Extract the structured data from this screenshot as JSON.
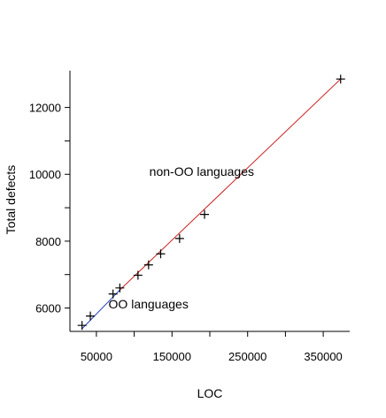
{
  "chart_data": {
    "type": "scatter",
    "title": "",
    "xlabel": "LOC",
    "ylabel": "Total defects",
    "xlim": [
      15000,
      385000
    ],
    "ylim": [
      5300,
      13100
    ],
    "x_ticks": [
      50000,
      150000,
      250000,
      350000
    ],
    "x_tick_labels": [
      "50000",
      "150000",
      "250000",
      "350000"
    ],
    "x_minor_ticks": [
      100000,
      200000,
      300000
    ],
    "y_ticks": [
      6000,
      8000,
      10000,
      12000
    ],
    "y_tick_labels": [
      "6000",
      "8000",
      "10000",
      "12000"
    ],
    "y_minor_ticks": [
      7000,
      9000,
      11000
    ],
    "grid": false,
    "points": [
      {
        "x": 31000,
        "y": 5480
      },
      {
        "x": 42000,
        "y": 5760
      },
      {
        "x": 72000,
        "y": 6420
      },
      {
        "x": 81000,
        "y": 6600
      },
      {
        "x": 105000,
        "y": 6980
      },
      {
        "x": 119000,
        "y": 7290
      },
      {
        "x": 135000,
        "y": 7620
      },
      {
        "x": 160000,
        "y": 8080
      },
      {
        "x": 193000,
        "y": 8800
      },
      {
        "x": 373000,
        "y": 12850
      }
    ],
    "series": [
      {
        "points": [
          [
            31000,
            5380
          ],
          [
            81000,
            6540
          ]
        ],
        "color": "#1f3fbf"
      },
      {
        "points": [
          [
            81000,
            6540
          ],
          [
            373000,
            12850
          ]
        ],
        "color": "#cc2222"
      }
    ],
    "annotations": [
      {
        "text": "non-OO languages",
        "x": 120000,
        "y": 9950
      },
      {
        "text": "OO languages",
        "x": 66000,
        "y": 5990
      }
    ]
  }
}
